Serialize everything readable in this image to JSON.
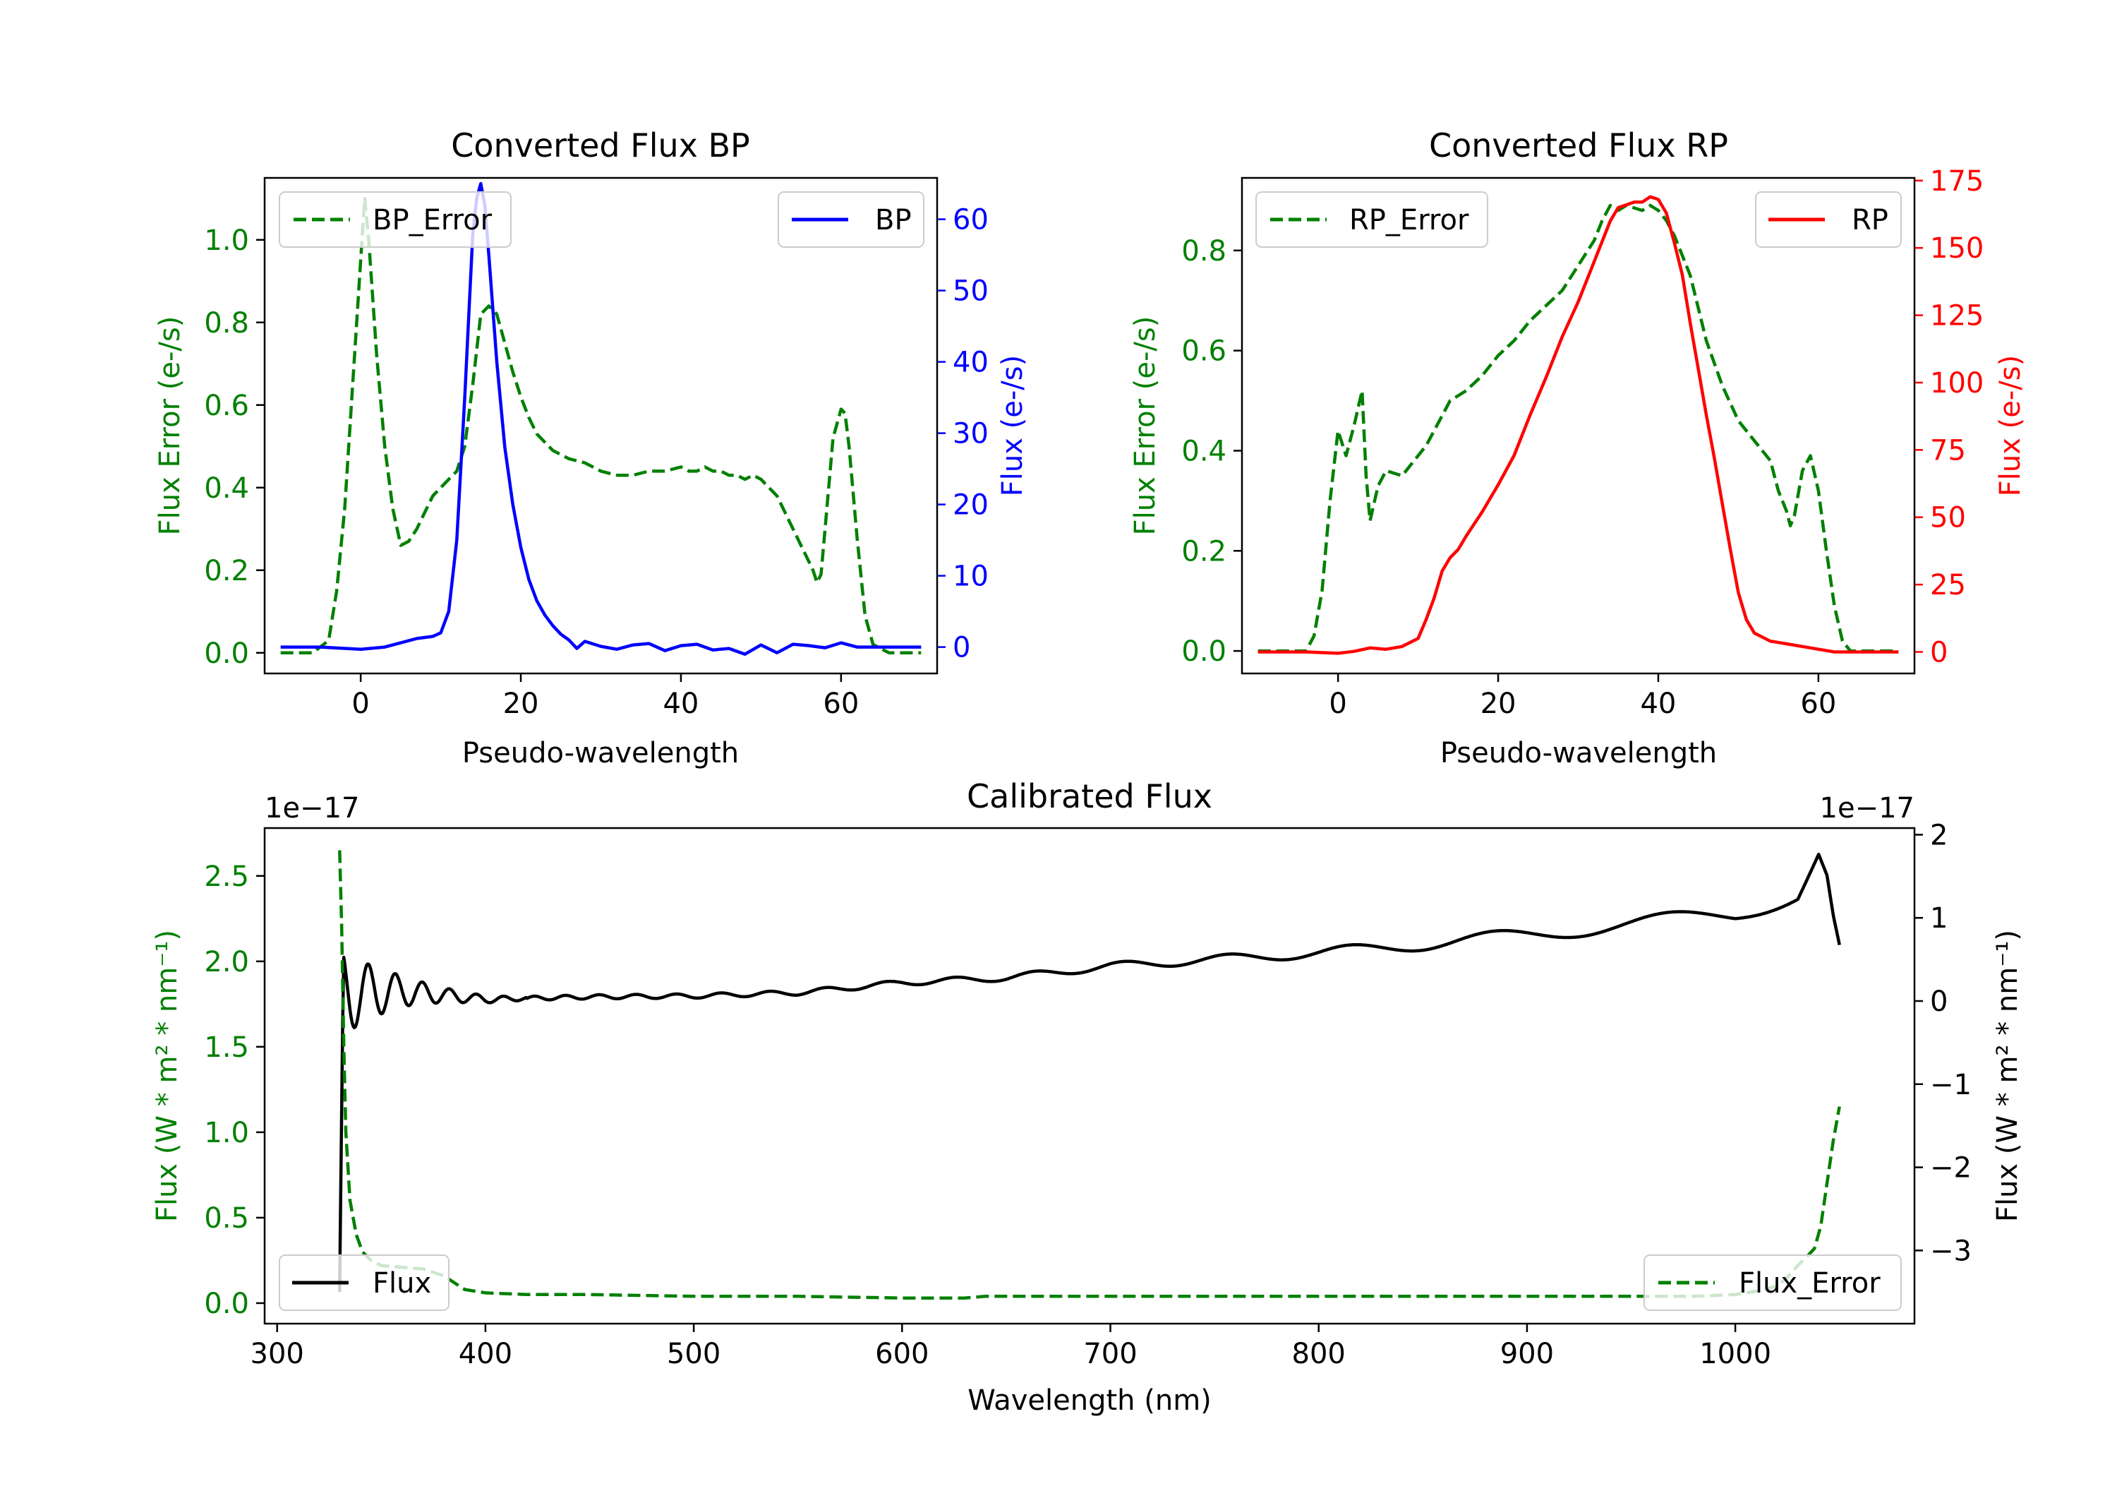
{
  "chart_data": [
    {
      "id": "bp",
      "type": "line",
      "title": "Converted Flux BP",
      "xlabel": "Pseudo-wavelength",
      "ylabel_left": "Flux Error (e-/s)",
      "ylabel_right": "Flux (e-/s)",
      "xlim": [
        -12,
        72
      ],
      "ylim_left": [
        -0.05,
        1.15
      ],
      "ylim_right": [
        -3.7,
        65.8
      ],
      "xticks": [
        0,
        20,
        40,
        60
      ],
      "yticks_left": [
        0.0,
        0.2,
        0.4,
        0.6,
        0.8,
        1.0
      ],
      "yticks_right": [
        0,
        10,
        20,
        30,
        40,
        50,
        60
      ],
      "legend_left_label": "BP_Error",
      "legend_right_label": "BP",
      "series": [
        {
          "name": "BP_Error",
          "axis": "left",
          "color": "#008000",
          "dash": "dashed",
          "x": [
            -10,
            -6,
            -4,
            -3,
            -2,
            -1,
            0,
            0.5,
            1,
            2,
            3,
            4,
            5,
            6,
            7,
            8,
            9,
            10,
            11,
            12,
            13,
            14,
            15,
            16,
            17,
            18,
            19,
            20,
            21,
            22,
            23,
            24,
            26,
            28,
            30,
            32,
            34,
            36,
            38,
            40,
            41,
            42,
            43,
            44,
            45,
            46,
            47,
            48,
            49,
            50,
            52,
            54,
            55,
            56,
            56.5,
            57,
            57.5,
            58,
            59,
            60,
            60.5,
            61,
            62,
            63,
            64,
            66,
            70
          ],
          "y": [
            0.0,
            0.0,
            0.03,
            0.15,
            0.35,
            0.65,
            0.95,
            1.1,
            1.0,
            0.72,
            0.5,
            0.35,
            0.26,
            0.27,
            0.3,
            0.34,
            0.38,
            0.4,
            0.42,
            0.44,
            0.5,
            0.65,
            0.82,
            0.84,
            0.82,
            0.75,
            0.68,
            0.62,
            0.57,
            0.53,
            0.51,
            0.49,
            0.47,
            0.46,
            0.44,
            0.43,
            0.43,
            0.44,
            0.44,
            0.45,
            0.44,
            0.44,
            0.45,
            0.44,
            0.44,
            0.43,
            0.43,
            0.42,
            0.43,
            0.42,
            0.38,
            0.3,
            0.26,
            0.22,
            0.2,
            0.17,
            0.19,
            0.3,
            0.52,
            0.59,
            0.58,
            0.5,
            0.28,
            0.09,
            0.02,
            0.0,
            0.0
          ]
        },
        {
          "name": "BP",
          "axis": "right",
          "color": "#0000ff",
          "dash": "solid",
          "x": [
            -10,
            -5,
            0,
            3,
            5,
            7,
            9,
            10,
            11,
            12,
            13,
            14,
            14.5,
            15,
            15.5,
            16,
            17,
            18,
            19,
            20,
            21,
            22,
            23,
            24,
            25,
            26,
            27,
            28,
            30,
            32,
            34,
            36,
            38,
            40,
            42,
            44,
            46,
            48,
            50,
            52,
            54,
            56,
            58,
            60,
            62,
            66,
            70
          ],
          "y": [
            0,
            0,
            -0.3,
            0,
            0.6,
            1.2,
            1.5,
            2,
            5,
            15,
            35,
            58,
            63,
            65,
            62,
            55,
            40,
            28,
            20,
            14,
            9.5,
            6.5,
            4.5,
            3,
            1.8,
            1,
            -0.2,
            0.8,
            0.1,
            -0.3,
            0.3,
            0.5,
            -0.5,
            0.2,
            0.4,
            -0.4,
            -0.2,
            -1,
            0.3,
            -0.8,
            0.4,
            0.2,
            -0.1,
            0.6,
            0,
            0,
            0
          ]
        }
      ]
    },
    {
      "id": "rp",
      "type": "line",
      "title": "Converted Flux RP",
      "xlabel": "Pseudo-wavelength",
      "ylabel_left": "Flux Error (e-/s)",
      "ylabel_right": "Flux (e-/s)",
      "xlim": [
        -12,
        72
      ],
      "ylim_left": [
        -0.045,
        0.945
      ],
      "ylim_right": [
        -8,
        176
      ],
      "xticks": [
        0,
        20,
        40,
        60
      ],
      "yticks_left": [
        0.0,
        0.2,
        0.4,
        0.6,
        0.8
      ],
      "yticks_right": [
        0,
        25,
        50,
        75,
        100,
        125,
        150,
        175
      ],
      "legend_left_label": "RP_Error",
      "legend_right_label": "RP",
      "series": [
        {
          "name": "RP_Error",
          "axis": "left",
          "color": "#008000",
          "dash": "dashed",
          "x": [
            -10,
            -4,
            -3,
            -2,
            -1,
            0,
            1,
            2,
            3,
            3.5,
            4,
            5,
            6,
            8,
            10,
            11,
            12,
            14,
            16,
            18,
            20,
            22,
            24,
            26,
            28,
            30,
            32,
            33,
            34,
            35,
            36,
            38,
            39,
            40,
            41,
            42,
            43,
            44,
            46,
            48,
            50,
            52,
            54,
            55,
            56,
            56.5,
            57,
            58,
            59,
            60,
            61,
            62,
            63,
            64,
            66,
            70
          ],
          "y": [
            0.0,
            0.0,
            0.03,
            0.12,
            0.3,
            0.44,
            0.39,
            0.45,
            0.52,
            0.35,
            0.26,
            0.33,
            0.36,
            0.35,
            0.39,
            0.41,
            0.44,
            0.5,
            0.52,
            0.55,
            0.59,
            0.62,
            0.66,
            0.69,
            0.72,
            0.77,
            0.82,
            0.86,
            0.89,
            0.88,
            0.89,
            0.88,
            0.89,
            0.88,
            0.86,
            0.83,
            0.79,
            0.75,
            0.62,
            0.53,
            0.46,
            0.42,
            0.38,
            0.32,
            0.28,
            0.25,
            0.27,
            0.36,
            0.39,
            0.32,
            0.2,
            0.09,
            0.02,
            0.0,
            0.0,
            0.0
          ]
        },
        {
          "name": "RP",
          "axis": "right",
          "color": "#ff0000",
          "dash": "solid",
          "x": [
            -10,
            -4,
            0,
            2,
            4,
            6,
            8,
            10,
            11,
            12,
            13,
            14,
            15,
            16,
            18,
            20,
            22,
            24,
            26,
            28,
            30,
            32,
            34,
            35,
            36,
            37,
            38,
            39,
            40,
            41,
            42,
            43,
            44,
            45,
            46,
            47,
            48,
            49,
            50,
            51,
            52,
            54,
            56,
            58,
            60,
            62,
            64,
            70
          ],
          "y": [
            0,
            0,
            -0.5,
            0.2,
            1.5,
            1,
            2,
            5,
            12,
            20,
            30,
            35,
            38,
            43,
            52,
            62,
            73,
            88,
            102,
            117,
            130,
            145,
            160,
            165,
            166,
            167,
            167,
            169,
            168,
            163,
            152,
            140,
            122,
            105,
            88,
            72,
            55,
            38,
            22,
            12,
            7,
            4,
            3,
            2,
            1,
            0,
            0,
            0
          ]
        }
      ]
    },
    {
      "id": "calibrated",
      "type": "line",
      "title": "Calibrated Flux",
      "xlabel": "Wavelength (nm)",
      "ylabel_left": "Flux (W * m² * nm⁻¹)",
      "ylabel_right": "Flux (W * m² * nm⁻¹)",
      "offset_left": "1e−17",
      "offset_right": "1e−17",
      "xlim": [
        294,
        1086
      ],
      "ylim_left": [
        -0.12,
        2.78
      ],
      "ylim_right": [
        -3.88,
        2.08
      ],
      "xticks": [
        300,
        400,
        500,
        600,
        700,
        800,
        900,
        1000
      ],
      "yticks_left": [
        0.0,
        0.5,
        1.0,
        1.5,
        2.0,
        2.5
      ],
      "yticks_right": [
        -3,
        -2,
        -1,
        0,
        1,
        2
      ],
      "legend_left_label": "Flux",
      "legend_right_label": "Flux_Error",
      "series": [
        {
          "name": "Flux",
          "axis": "right",
          "color": "#000000",
          "dash": "solid",
          "generator": "calibrated_flux",
          "x_range": [
            330,
            1050
          ],
          "anchor_x": [
            330,
            360,
            400,
            450,
            500,
            550,
            600,
            650,
            700,
            750,
            800,
            850,
            900,
            950,
            1000,
            1030,
            1040,
            1044,
            1047,
            1050
          ],
          "anchor_y": [
            0.1,
            0.12,
            0.02,
            0.05,
            0.06,
            0.1,
            0.22,
            0.28,
            0.42,
            0.5,
            0.58,
            0.68,
            0.8,
            0.92,
            1.05,
            1.3,
            1.78,
            1.5,
            1.0,
            0.62
          ]
        },
        {
          "name": "Flux_Error",
          "axis": "left",
          "color": "#008000",
          "dash": "dashed",
          "x": [
            330,
            331,
            332,
            333,
            335,
            338,
            341,
            345,
            350,
            360,
            370,
            380,
            390,
            400,
            420,
            450,
            500,
            550,
            600,
            630,
            640,
            650,
            700,
            750,
            800,
            850,
            900,
            950,
            980,
            1000,
            1010,
            1020,
            1025,
            1030,
            1035,
            1038,
            1041,
            1044,
            1047,
            1050
          ],
          "y": [
            2.65,
            2.2,
            1.5,
            1.0,
            0.6,
            0.4,
            0.3,
            0.25,
            0.22,
            0.21,
            0.2,
            0.16,
            0.08,
            0.06,
            0.05,
            0.05,
            0.04,
            0.04,
            0.03,
            0.03,
            0.04,
            0.04,
            0.04,
            0.04,
            0.04,
            0.04,
            0.04,
            0.04,
            0.04,
            0.05,
            0.07,
            0.1,
            0.15,
            0.22,
            0.28,
            0.32,
            0.45,
            0.7,
            0.95,
            1.15
          ]
        }
      ]
    }
  ]
}
